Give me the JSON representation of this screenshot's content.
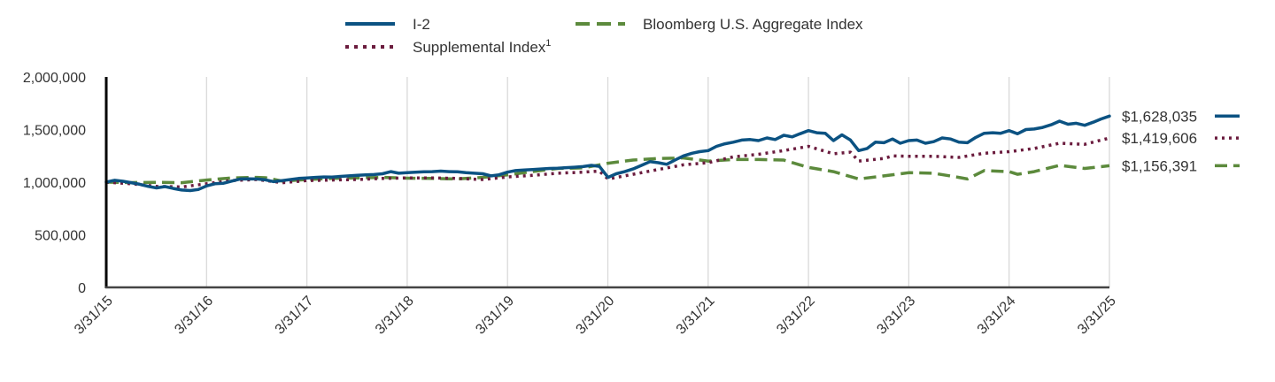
{
  "chart_data": {
    "type": "line",
    "title": "",
    "xlabel": "",
    "ylabel": "",
    "ylim": [
      0,
      2000000
    ],
    "yticks": [
      0,
      500000,
      1000000,
      1500000,
      2000000
    ],
    "ytick_labels": [
      "0",
      "500,000",
      "1,000,000",
      "1,500,000",
      "2,000,000"
    ],
    "x_start": "3/31/15",
    "x_end": "3/31/25",
    "xtick_labels": [
      "3/31/15",
      "3/31/16",
      "3/31/17",
      "3/31/18",
      "3/31/19",
      "3/31/20",
      "3/31/21",
      "3/31/22",
      "3/31/23",
      "3/31/24",
      "3/31/25"
    ],
    "grid": "vertical",
    "legend_placement": "top-center",
    "series": [
      {
        "name": "I-2",
        "style": "solid",
        "color": "#0b5282",
        "end_label": "$1,628,035",
        "points": [
          [
            "2015-03-31",
            1000000
          ],
          [
            "2015-04-30",
            1018000
          ],
          [
            "2015-05-31",
            1008000
          ],
          [
            "2015-06-30",
            995000
          ],
          [
            "2015-07-31",
            980000
          ],
          [
            "2015-08-31",
            960000
          ],
          [
            "2015-09-30",
            945000
          ],
          [
            "2015-10-31",
            958000
          ],
          [
            "2015-11-30",
            940000
          ],
          [
            "2015-12-31",
            925000
          ],
          [
            "2016-01-31",
            920000
          ],
          [
            "2016-02-29",
            930000
          ],
          [
            "2016-03-31",
            965000
          ],
          [
            "2016-04-30",
            985000
          ],
          [
            "2016-05-31",
            990000
          ],
          [
            "2016-06-30",
            1010000
          ],
          [
            "2016-07-31",
            1030000
          ],
          [
            "2016-08-31",
            1032000
          ],
          [
            "2016-09-30",
            1030000
          ],
          [
            "2016-10-31",
            1022000
          ],
          [
            "2016-11-30",
            1005000
          ],
          [
            "2016-12-31",
            1015000
          ],
          [
            "2017-01-31",
            1025000
          ],
          [
            "2017-02-28",
            1035000
          ],
          [
            "2017-03-31",
            1040000
          ],
          [
            "2017-04-30",
            1045000
          ],
          [
            "2017-05-31",
            1050000
          ],
          [
            "2017-06-30",
            1048000
          ],
          [
            "2017-07-31",
            1055000
          ],
          [
            "2017-08-31",
            1060000
          ],
          [
            "2017-09-30",
            1065000
          ],
          [
            "2017-10-31",
            1070000
          ],
          [
            "2017-11-30",
            1072000
          ],
          [
            "2017-12-31",
            1080000
          ],
          [
            "2018-01-31",
            1100000
          ],
          [
            "2018-02-28",
            1085000
          ],
          [
            "2018-03-31",
            1090000
          ],
          [
            "2018-04-30",
            1095000
          ],
          [
            "2018-05-31",
            1098000
          ],
          [
            "2018-06-30",
            1100000
          ],
          [
            "2018-07-31",
            1105000
          ],
          [
            "2018-08-31",
            1100000
          ],
          [
            "2018-09-30",
            1098000
          ],
          [
            "2018-10-31",
            1090000
          ],
          [
            "2018-11-30",
            1085000
          ],
          [
            "2018-12-31",
            1080000
          ],
          [
            "2019-01-31",
            1060000
          ],
          [
            "2019-02-28",
            1070000
          ],
          [
            "2019-03-31",
            1095000
          ],
          [
            "2019-04-30",
            1110000
          ],
          [
            "2019-05-31",
            1115000
          ],
          [
            "2019-06-30",
            1120000
          ],
          [
            "2019-07-31",
            1125000
          ],
          [
            "2019-08-31",
            1130000
          ],
          [
            "2019-09-30",
            1132000
          ],
          [
            "2019-10-31",
            1138000
          ],
          [
            "2019-11-30",
            1142000
          ],
          [
            "2019-12-31",
            1148000
          ],
          [
            "2020-01-31",
            1160000
          ],
          [
            "2020-02-29",
            1150000
          ],
          [
            "2020-03-31",
            1045000
          ],
          [
            "2020-04-30",
            1080000
          ],
          [
            "2020-05-31",
            1100000
          ],
          [
            "2020-06-30",
            1125000
          ],
          [
            "2020-07-31",
            1160000
          ],
          [
            "2020-08-31",
            1195000
          ],
          [
            "2020-09-30",
            1185000
          ],
          [
            "2020-10-31",
            1170000
          ],
          [
            "2020-11-30",
            1210000
          ],
          [
            "2020-12-31",
            1250000
          ],
          [
            "2021-01-31",
            1275000
          ],
          [
            "2021-02-28",
            1290000
          ],
          [
            "2021-03-31",
            1300000
          ],
          [
            "2021-04-30",
            1340000
          ],
          [
            "2021-05-31",
            1365000
          ],
          [
            "2021-06-30",
            1380000
          ],
          [
            "2021-07-31",
            1400000
          ],
          [
            "2021-08-31",
            1405000
          ],
          [
            "2021-09-30",
            1395000
          ],
          [
            "2021-10-31",
            1420000
          ],
          [
            "2021-11-30",
            1405000
          ],
          [
            "2021-12-31",
            1445000
          ],
          [
            "2022-01-31",
            1430000
          ],
          [
            "2022-02-28",
            1460000
          ],
          [
            "2022-03-31",
            1490000
          ],
          [
            "2022-04-30",
            1470000
          ],
          [
            "2022-05-31",
            1465000
          ],
          [
            "2022-06-30",
            1395000
          ],
          [
            "2022-07-31",
            1450000
          ],
          [
            "2022-08-31",
            1400000
          ],
          [
            "2022-09-30",
            1300000
          ],
          [
            "2022-10-31",
            1320000
          ],
          [
            "2022-11-30",
            1380000
          ],
          [
            "2022-12-31",
            1375000
          ],
          [
            "2023-01-31",
            1410000
          ],
          [
            "2023-02-28",
            1370000
          ],
          [
            "2023-03-31",
            1395000
          ],
          [
            "2023-04-30",
            1400000
          ],
          [
            "2023-05-31",
            1370000
          ],
          [
            "2023-06-30",
            1385000
          ],
          [
            "2023-07-31",
            1420000
          ],
          [
            "2023-08-31",
            1410000
          ],
          [
            "2023-09-30",
            1380000
          ],
          [
            "2023-10-31",
            1375000
          ],
          [
            "2023-11-30",
            1425000
          ],
          [
            "2023-12-31",
            1465000
          ],
          [
            "2024-01-31",
            1470000
          ],
          [
            "2024-02-29",
            1465000
          ],
          [
            "2024-03-31",
            1490000
          ],
          [
            "2024-04-30",
            1460000
          ],
          [
            "2024-05-31",
            1500000
          ],
          [
            "2024-06-30",
            1505000
          ],
          [
            "2024-07-31",
            1520000
          ],
          [
            "2024-08-31",
            1545000
          ],
          [
            "2024-09-30",
            1580000
          ],
          [
            "2024-10-31",
            1550000
          ],
          [
            "2024-11-30",
            1560000
          ],
          [
            "2024-12-31",
            1540000
          ],
          [
            "2025-01-31",
            1570000
          ],
          [
            "2025-02-28",
            1600000
          ],
          [
            "2025-03-31",
            1628035
          ]
        ]
      },
      {
        "name": "Bloomberg U.S. Aggregate Index",
        "style": "dashed",
        "color": "#5c8a3c",
        "end_label": "$1,156,391",
        "points": [
          [
            "2015-03-31",
            1000000
          ],
          [
            "2015-06-30",
            996000
          ],
          [
            "2015-09-30",
            998000
          ],
          [
            "2015-12-31",
            995000
          ],
          [
            "2016-03-31",
            1020000
          ],
          [
            "2016-06-30",
            1040000
          ],
          [
            "2016-09-30",
            1045000
          ],
          [
            "2016-10-31",
            1042000
          ],
          [
            "2016-12-31",
            1010000
          ],
          [
            "2017-03-31",
            1025000
          ],
          [
            "2017-06-30",
            1035000
          ],
          [
            "2017-09-30",
            1040000
          ],
          [
            "2017-12-31",
            1045000
          ],
          [
            "2018-03-31",
            1038000
          ],
          [
            "2018-06-30",
            1035000
          ],
          [
            "2018-09-30",
            1030000
          ],
          [
            "2018-12-31",
            1045000
          ],
          [
            "2019-03-31",
            1070000
          ],
          [
            "2019-06-30",
            1100000
          ],
          [
            "2019-09-30",
            1130000
          ],
          [
            "2019-12-31",
            1135000
          ],
          [
            "2020-03-31",
            1180000
          ],
          [
            "2020-06-30",
            1210000
          ],
          [
            "2020-09-30",
            1225000
          ],
          [
            "2020-12-31",
            1230000
          ],
          [
            "2021-03-31",
            1200000
          ],
          [
            "2021-06-30",
            1215000
          ],
          [
            "2021-09-30",
            1215000
          ],
          [
            "2021-12-31",
            1210000
          ],
          [
            "2022-03-31",
            1140000
          ],
          [
            "2022-06-30",
            1100000
          ],
          [
            "2022-09-30",
            1030000
          ],
          [
            "2022-12-31",
            1060000
          ],
          [
            "2023-03-31",
            1090000
          ],
          [
            "2023-06-30",
            1085000
          ],
          [
            "2023-09-30",
            1045000
          ],
          [
            "2023-10-31",
            1030000
          ],
          [
            "2023-12-31",
            1110000
          ],
          [
            "2024-03-31",
            1100000
          ],
          [
            "2024-04-30",
            1075000
          ],
          [
            "2024-06-30",
            1100000
          ],
          [
            "2024-09-30",
            1160000
          ],
          [
            "2024-12-31",
            1130000
          ],
          [
            "2025-03-31",
            1156391
          ]
        ]
      },
      {
        "name": "Supplemental Index",
        "name_superscript": "1",
        "style": "dotted",
        "color": "#6b1c3e",
        "end_label": "$1,419,606",
        "points": [
          [
            "2015-03-31",
            1000000
          ],
          [
            "2015-06-30",
            985000
          ],
          [
            "2015-09-30",
            960000
          ],
          [
            "2015-12-31",
            955000
          ],
          [
            "2016-03-31",
            985000
          ],
          [
            "2016-06-30",
            1015000
          ],
          [
            "2016-09-30",
            1025000
          ],
          [
            "2016-12-31",
            995000
          ],
          [
            "2017-03-31",
            1015000
          ],
          [
            "2017-06-30",
            1020000
          ],
          [
            "2017-09-30",
            1025000
          ],
          [
            "2017-12-31",
            1035000
          ],
          [
            "2018-03-31",
            1040000
          ],
          [
            "2018-06-30",
            1040000
          ],
          [
            "2018-09-30",
            1035000
          ],
          [
            "2018-12-31",
            1025000
          ],
          [
            "2019-03-31",
            1050000
          ],
          [
            "2019-06-30",
            1065000
          ],
          [
            "2019-09-30",
            1085000
          ],
          [
            "2019-12-31",
            1095000
          ],
          [
            "2020-02-29",
            1105000
          ],
          [
            "2020-03-31",
            1030000
          ],
          [
            "2020-06-30",
            1075000
          ],
          [
            "2020-09-30",
            1120000
          ],
          [
            "2020-12-31",
            1165000
          ],
          [
            "2021-03-31",
            1185000
          ],
          [
            "2021-06-30",
            1240000
          ],
          [
            "2021-09-30",
            1265000
          ],
          [
            "2021-12-31",
            1300000
          ],
          [
            "2022-03-31",
            1340000
          ],
          [
            "2022-06-30",
            1270000
          ],
          [
            "2022-08-31",
            1285000
          ],
          [
            "2022-09-30",
            1200000
          ],
          [
            "2022-12-31",
            1225000
          ],
          [
            "2023-01-31",
            1250000
          ],
          [
            "2023-03-31",
            1245000
          ],
          [
            "2023-06-30",
            1245000
          ],
          [
            "2023-09-30",
            1235000
          ],
          [
            "2023-12-31",
            1275000
          ],
          [
            "2024-03-31",
            1290000
          ],
          [
            "2024-06-30",
            1320000
          ],
          [
            "2024-09-30",
            1370000
          ],
          [
            "2024-12-31",
            1360000
          ],
          [
            "2025-03-31",
            1419606
          ]
        ]
      }
    ]
  }
}
